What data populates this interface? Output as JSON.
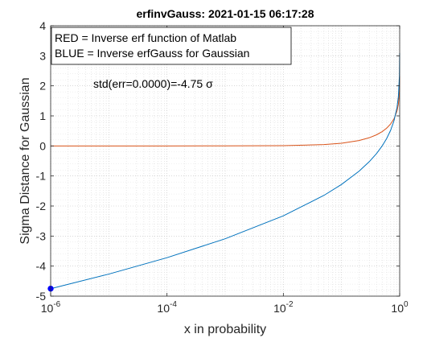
{
  "chart_data": {
    "type": "line",
    "title": "erfinvGauss: 2021-01-15 06:17:28",
    "xlabel": "x in probability",
    "ylabel": "Sigma Distance for Gaussian",
    "xscale": "log",
    "xlim": [
      1e-06,
      1
    ],
    "ylim": [
      -5,
      4
    ],
    "grid": "on (major and minor)",
    "x_ticks": [
      {
        "value": 1e-06,
        "base": "10",
        "exp": "-6"
      },
      {
        "value": 0.0001,
        "base": "10",
        "exp": "-4"
      },
      {
        "value": 0.01,
        "base": "10",
        "exp": "-2"
      },
      {
        "value": 1,
        "base": "10",
        "exp": "0"
      }
    ],
    "y_ticks": [
      {
        "value": -5,
        "label": "-5"
      },
      {
        "value": -4,
        "label": "-4"
      },
      {
        "value": -3,
        "label": "-3"
      },
      {
        "value": -2,
        "label": "-2"
      },
      {
        "value": -1,
        "label": "-1"
      },
      {
        "value": 0,
        "label": "0"
      },
      {
        "value": 1,
        "label": "1"
      },
      {
        "value": 2,
        "label": "2"
      },
      {
        "value": 3,
        "label": "3"
      },
      {
        "value": 4,
        "label": "4"
      }
    ],
    "legend": {
      "placement": "top-left",
      "entries": [
        "RED = Inverse erf function of Matlab",
        "BLUE = Inverse erfGauss for Gaussian"
      ]
    },
    "annotation": "std(err=0.0000)=-4.75 σ",
    "series": [
      {
        "color": "#D95319",
        "x": [
          1e-06,
          1e-05,
          0.0001,
          0.001,
          0.01,
          0.05,
          0.1,
          0.2,
          0.3,
          0.4,
          0.5,
          0.6,
          0.7,
          0.8,
          0.9,
          0.95,
          0.99,
          0.999
        ],
        "y": [
          0.0,
          0.0,
          0.0001,
          0.0009,
          0.0089,
          0.0443,
          0.0889,
          0.1791,
          0.2725,
          0.3708,
          0.4769,
          0.5951,
          0.7329,
          0.9062,
          1.1631,
          1.3859,
          1.8214,
          2.3268
        ]
      },
      {
        "color": "#0072BD",
        "x": [
          1e-06,
          1e-05,
          0.0001,
          0.001,
          0.01,
          0.05,
          0.1,
          0.2,
          0.3,
          0.4,
          0.5,
          0.6,
          0.7,
          0.8,
          0.9,
          0.95,
          0.99,
          0.999
        ],
        "y": [
          -4.7534,
          -4.2649,
          -3.719,
          -3.0902,
          -2.3263,
          -1.6449,
          -1.2816,
          -0.8416,
          -0.5244,
          -0.2533,
          0.0,
          0.2533,
          0.5244,
          0.8416,
          1.2816,
          1.6449,
          2.3263,
          3.0902
        ]
      }
    ],
    "marker": {
      "x": 1e-06,
      "y": -4.75,
      "color": "#0000FF"
    }
  }
}
